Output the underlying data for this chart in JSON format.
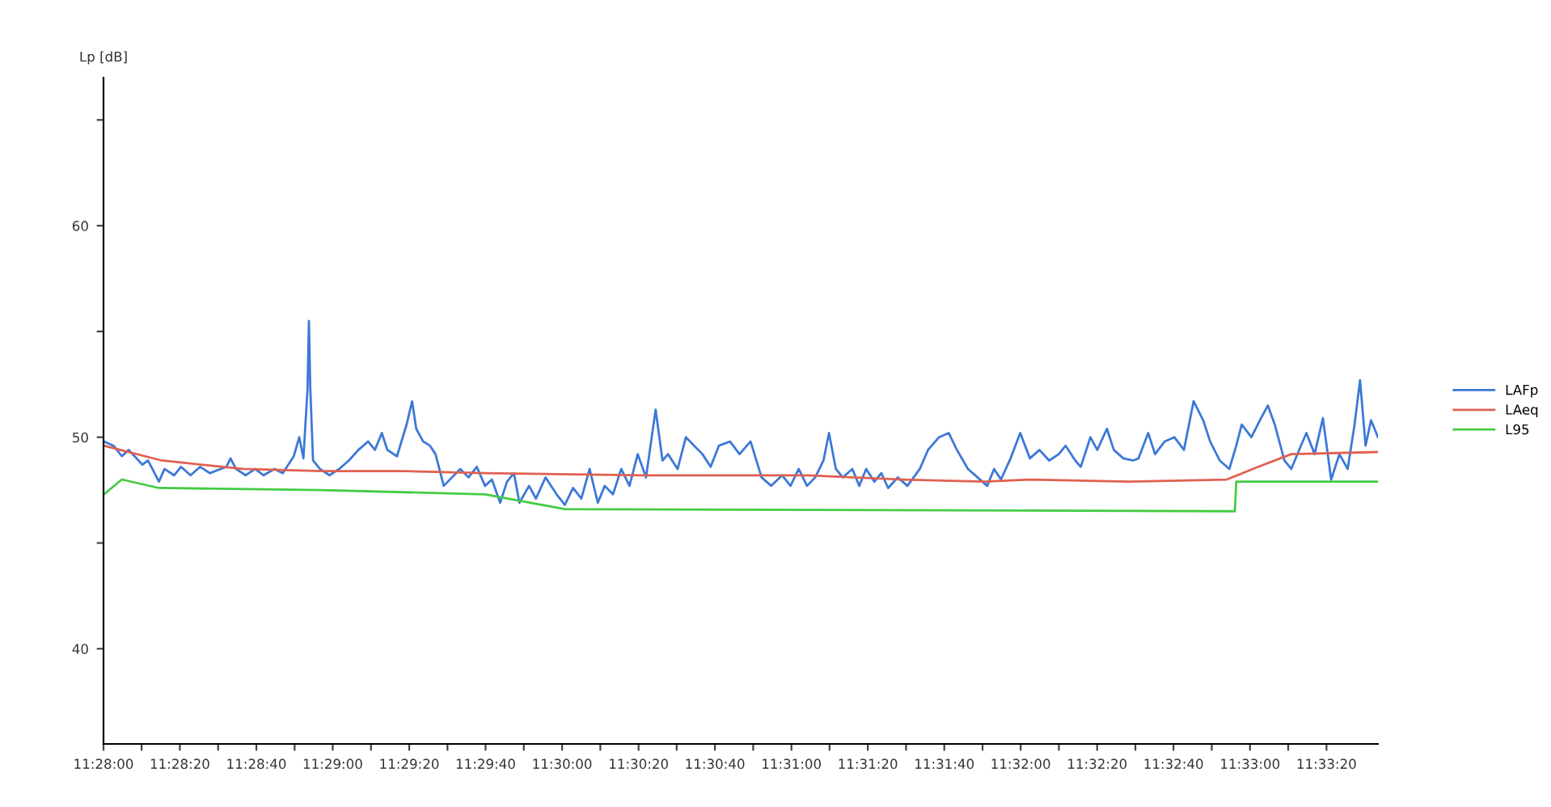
{
  "chart_data": {
    "type": "line",
    "ylabel": "Lp [dB]",
    "ylim": [
      35.5,
      67
    ],
    "yticks": [
      40,
      {
        "value": 45,
        "label": null
      },
      50,
      {
        "value": 55,
        "label": null
      },
      60,
      {
        "value": 65,
        "label": null
      }
    ],
    "xlim": [
      11.46667,
      11.5593
    ],
    "xticks": [
      {
        "value": 11.46667,
        "label": "11:28:00"
      },
      {
        "value": 11.46944,
        "label": null
      },
      {
        "value": 11.47222,
        "label": "11:28:20"
      },
      {
        "value": 11.475,
        "label": null
      },
      {
        "value": 11.47778,
        "label": "11:28:40"
      },
      {
        "value": 11.48056,
        "label": null
      },
      {
        "value": 11.48333,
        "label": "11:29:00"
      },
      {
        "value": 11.48611,
        "label": null
      },
      {
        "value": 11.48889,
        "label": "11:29:20"
      },
      {
        "value": 11.49167,
        "label": null
      },
      {
        "value": 11.49444,
        "label": "11:29:40"
      },
      {
        "value": 11.49722,
        "label": null
      },
      {
        "value": 11.5,
        "label": "11:30:00"
      },
      {
        "value": 11.50278,
        "label": null
      },
      {
        "value": 11.50556,
        "label": "11:30:20"
      },
      {
        "value": 11.50833,
        "label": null
      },
      {
        "value": 11.51111,
        "label": "11:30:40"
      },
      {
        "value": 11.51389,
        "label": null
      },
      {
        "value": 11.51667,
        "label": "11:31:00"
      },
      {
        "value": 11.51944,
        "label": null
      },
      {
        "value": 11.52222,
        "label": "11:31:20"
      },
      {
        "value": 11.525,
        "label": null
      },
      {
        "value": 11.52778,
        "label": "11:31:40"
      },
      {
        "value": 11.53056,
        "label": null
      },
      {
        "value": 11.53333,
        "label": "11:32:00"
      },
      {
        "value": 11.53611,
        "label": null
      },
      {
        "value": 11.53889,
        "label": "11:32:20"
      },
      {
        "value": 11.54167,
        "label": null
      },
      {
        "value": 11.54444,
        "label": "11:32:40"
      },
      {
        "value": 11.54722,
        "label": null
      },
      {
        "value": 11.55,
        "label": "11:33:00"
      },
      {
        "value": 11.55278,
        "label": null
      },
      {
        "value": 11.55556,
        "label": "11:33:20"
      }
    ],
    "grid": false,
    "legend": "right",
    "marker": "none",
    "line_style": "solid",
    "series": [
      {
        "name": "LAFp",
        "color": "#3c78d8",
        "x": [
          11.4667,
          11.4674,
          11.468,
          11.4685,
          11.4695,
          11.4699,
          11.4707,
          11.4711,
          11.4718,
          11.4723,
          11.473,
          11.4737,
          11.4744,
          11.4756,
          11.4759,
          11.4763,
          11.477,
          11.4777,
          11.4783,
          11.4791,
          11.4797,
          11.4805,
          11.4809,
          11.4812,
          11.4815,
          11.4816,
          11.4817,
          11.4819,
          11.4824,
          11.4831,
          11.4838,
          11.4845,
          11.4852,
          11.4859,
          11.4864,
          11.4869,
          11.4873,
          11.488,
          11.4887,
          11.4891,
          11.4894,
          11.4899,
          11.4904,
          11.4908,
          11.4914,
          11.492,
          11.4926,
          11.4932,
          11.4938,
          11.4944,
          11.4949,
          11.4955,
          11.496,
          11.4965,
          11.4969,
          11.4976,
          11.4981,
          11.4988,
          11.4996,
          11.5002,
          11.5008,
          11.5014,
          11.502,
          11.5026,
          11.5031,
          11.5037,
          11.5043,
          11.5049,
          11.5055,
          11.5061,
          11.5068,
          11.5073,
          11.5077,
          11.5084,
          11.509,
          11.5096,
          11.5102,
          11.5108,
          11.5114,
          11.5122,
          11.5129,
          11.5137,
          11.5145,
          11.5152,
          11.516,
          11.5166,
          11.5172,
          11.5178,
          11.5184,
          11.519,
          11.5194,
          11.5199,
          11.5204,
          11.5211,
          11.5216,
          11.5221,
          11.5227,
          11.5232,
          11.5237,
          11.5244,
          11.5251,
          11.526,
          11.5266,
          11.5274,
          11.5281,
          11.5287,
          11.5295,
          11.5302,
          11.5309,
          11.5314,
          11.5319,
          11.5326,
          11.5333,
          11.534,
          11.5347,
          11.5354,
          11.5361,
          11.5366,
          11.5373,
          11.5377,
          11.5384,
          11.5389,
          11.5396,
          11.5401,
          11.5408,
          11.5415,
          11.5419,
          11.5426,
          11.5431,
          11.5438,
          11.5445,
          11.5452,
          11.5459,
          11.5466,
          11.5471,
          11.5478,
          11.5485,
          11.549,
          11.5494,
          11.5501,
          11.5508,
          11.5513,
          11.5518,
          11.5525,
          11.553,
          11.5537,
          11.5541,
          11.5547,
          11.5553,
          11.5559,
          11.5565,
          11.5571,
          11.5576,
          11.558,
          11.5584,
          11.5588,
          11.5593
        ],
        "values": [
          49.8,
          49.6,
          49.1,
          49.4,
          48.7,
          48.9,
          47.9,
          48.5,
          48.2,
          48.6,
          48.2,
          48.6,
          48.3,
          48.6,
          49.0,
          48.5,
          48.2,
          48.5,
          48.2,
          48.5,
          48.3,
          49.1,
          50.0,
          49.0,
          52.3,
          55.5,
          52.3,
          48.9,
          48.5,
          48.2,
          48.5,
          48.9,
          49.4,
          49.8,
          49.4,
          50.2,
          49.4,
          49.1,
          50.6,
          51.7,
          50.4,
          49.8,
          49.6,
          49.2,
          47.7,
          48.1,
          48.5,
          48.1,
          48.6,
          47.7,
          48.0,
          46.9,
          47.9,
          48.3,
          46.9,
          47.7,
          47.1,
          48.1,
          47.3,
          46.8,
          47.6,
          47.1,
          48.5,
          46.9,
          47.7,
          47.3,
          48.5,
          47.7,
          49.2,
          48.1,
          51.3,
          48.9,
          49.2,
          48.5,
          50.0,
          49.6,
          49.2,
          48.6,
          49.6,
          49.8,
          49.2,
          49.8,
          48.1,
          47.7,
          48.2,
          47.7,
          48.5,
          47.7,
          48.1,
          48.9,
          50.2,
          48.5,
          48.1,
          48.5,
          47.7,
          48.5,
          47.9,
          48.3,
          47.6,
          48.1,
          47.7,
          48.5,
          49.4,
          50.0,
          50.2,
          49.4,
          48.5,
          48.1,
          47.7,
          48.5,
          48.0,
          49.0,
          50.2,
          49.0,
          49.4,
          48.9,
          49.2,
          49.6,
          48.9,
          48.6,
          50.0,
          49.4,
          50.4,
          49.4,
          49.0,
          48.9,
          49.0,
          50.2,
          49.2,
          49.8,
          50.0,
          49.4,
          51.7,
          50.8,
          49.8,
          48.9,
          48.5,
          49.6,
          50.6,
          50.0,
          50.9,
          51.5,
          50.6,
          48.9,
          48.5,
          49.6,
          50.2,
          49.2,
          50.9,
          48.0,
          49.2,
          48.5,
          50.6,
          52.7,
          49.6,
          50.8,
          50.0
        ]
      },
      {
        "name": "LAeq",
        "color": "#e06050",
        "x": [
          11.4667,
          11.4709,
          11.4768,
          11.4826,
          11.4885,
          11.4944,
          11.5061,
          11.5178,
          11.5248,
          11.5307,
          11.5342,
          11.5412,
          11.5483,
          11.5506,
          11.553,
          11.5593
        ],
        "values": [
          49.6,
          48.9,
          48.5,
          48.4,
          48.4,
          48.3,
          48.2,
          48.2,
          48.0,
          47.9,
          48.0,
          47.9,
          48.0,
          48.6,
          49.2,
          49.3
        ]
      },
      {
        "name": "L95",
        "color": "#44cc44",
        "x": [
          11.4667,
          11.468,
          11.4707,
          11.4826,
          11.4944,
          11.5002,
          11.5489,
          11.549,
          11.5593
        ],
        "values": [
          47.3,
          48.0,
          47.6,
          47.5,
          47.3,
          46.6,
          46.5,
          47.9,
          47.9
        ]
      }
    ]
  }
}
